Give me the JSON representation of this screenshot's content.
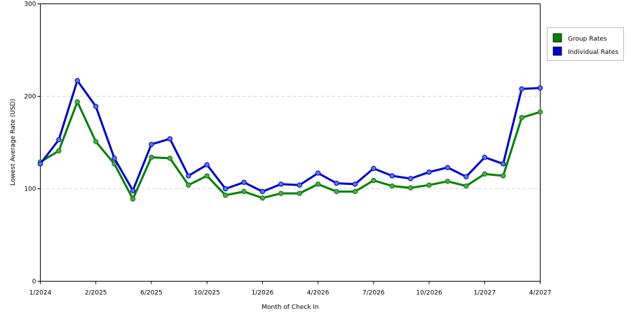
{
  "chart_data": {
    "type": "line",
    "title": "",
    "xlabel": "Month of Check In",
    "ylabel": "Lowest Average Rate (USD)",
    "ylim": [
      0,
      300
    ],
    "yticks": [
      0,
      100,
      200,
      300
    ],
    "grid": "horizontal dashed",
    "legend_position": "right",
    "x_tick_labels": [
      "1/2024",
      "2/2025",
      "6/2025",
      "10/2025",
      "1/2026",
      "4/2026",
      "7/2026",
      "10/2026",
      "1/2027",
      "4/2027"
    ],
    "x_tick_index": [
      0,
      3,
      6,
      9,
      12,
      15,
      18,
      21,
      24,
      27
    ],
    "point_count": 28,
    "series": [
      {
        "name": "Group Rates",
        "color": "#008000",
        "values": [
          129,
          141,
          194,
          151,
          127,
          89,
          134,
          133,
          104,
          114,
          93,
          97,
          90,
          95,
          95,
          105,
          97,
          97,
          109,
          103,
          101,
          104,
          108,
          103,
          116,
          114,
          177,
          183
        ]
      },
      {
        "name": "Individual Rates",
        "color": "#0000cc",
        "values": [
          127,
          153,
          217,
          189,
          133,
          98,
          148,
          154,
          114,
          126,
          100,
          107,
          97,
          105,
          104,
          117,
          106,
          105,
          122,
          114,
          111,
          118,
          123,
          113,
          134,
          127,
          208,
          209
        ]
      }
    ]
  }
}
